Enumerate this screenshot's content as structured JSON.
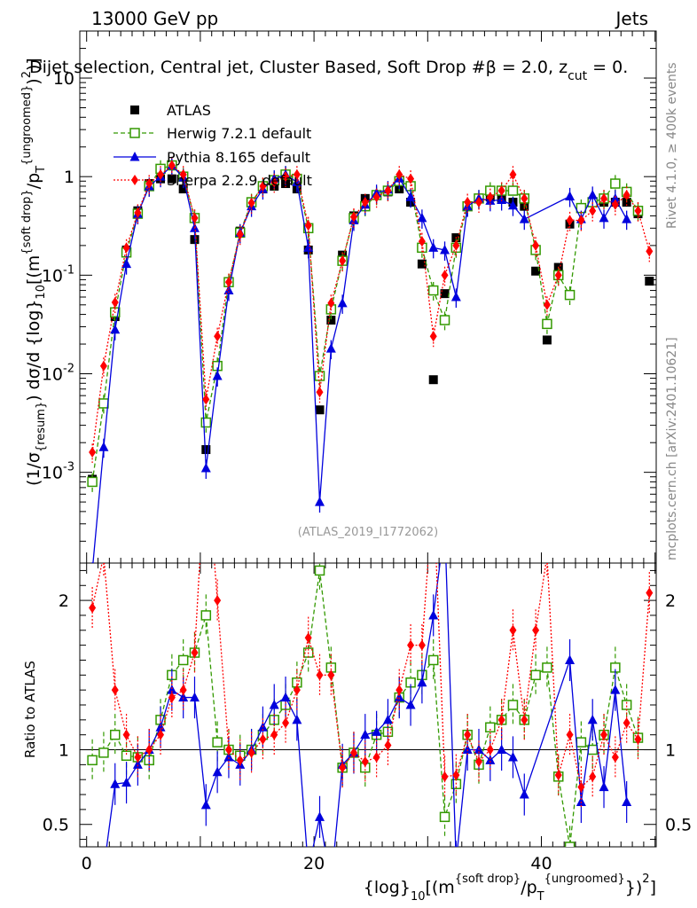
{
  "header": {
    "energy_label": "13000 GeV pp",
    "category": "Jets"
  },
  "chart_data": {
    "type": "scatter",
    "title": "Dijet selection, Central jet, Cluster Based, Soft Drop #beta = 2.0, z_cut = 0.",
    "title_parts": {
      "main": "Dijet selection, Central jet, Cluster Based, Soft Drop #",
      "beta": "β",
      "rest": " = 2.0, z",
      "cut": "cut",
      "tail": " = 0."
    },
    "xlabel": "{log}10[(m{soft drop}/pT{ungroomed})2]",
    "xlabel_parts": {
      "a": "{log}",
      "b": "10",
      "c": "[(m",
      "d": "{soft drop}",
      "e": "/p",
      "f": "T",
      "g": "{ungroomed}",
      "h": "})",
      "i": "2",
      "j": "]"
    },
    "ylabel": "(1/σ{resum}) dσ/d {log}10[(m{soft drop}/pT{ungroomed})2]",
    "ylabel_parts": {
      "a": "(1/σ",
      "b": "{resum}",
      "c": ") dσ/d {log}",
      "d": "10",
      "e": "[(m",
      "f": "{soft drop}",
      "g": "/p",
      "h": "T",
      "i": "{ungroomed}",
      "j": ")",
      "k": "2",
      "l": ")]"
    },
    "ratio_ylabel": "Ratio to ATLAS",
    "xlim": [
      -0.6,
      50.1
    ],
    "ylim_main": [
      0.00012,
      30
    ],
    "yscale_main": "log",
    "ylim_ratio": [
      0.35,
      2.25
    ],
    "xticks": [
      "0",
      "20",
      "40"
    ],
    "yticks_main": [
      {
        "base": "10",
        "exp": "-3"
      },
      {
        "base": "10",
        "exp": "-2"
      },
      {
        "base": "10",
        "exp": "-1"
      },
      {
        "base": "1",
        "exp": ""
      },
      {
        "base": "10",
        "exp": ""
      }
    ],
    "yticks_ratio": [
      "0.5",
      "1",
      "2"
    ],
    "legend_position": "top-left",
    "series": [
      {
        "name": "ATLAS",
        "color": "#000000",
        "style": "data",
        "x": [
          0.5,
          1.5,
          2.5,
          3.5,
          4.5,
          5.5,
          6.5,
          7.5,
          8.5,
          9.5,
          10.5,
          11.5,
          12.5,
          13.5,
          14.5,
          15.5,
          16.5,
          17.5,
          18.5,
          19.5,
          20.5,
          21.5,
          22.5,
          23.5,
          24.5,
          25.5,
          26.5,
          27.5,
          28.5,
          29.5,
          30.5,
          31.5,
          32.5,
          33.5,
          34.5,
          35.5,
          36.5,
          37.5,
          38.5,
          39.5,
          40.5,
          41.5,
          42.5,
          43.5,
          44.5,
          45.5,
          46.5,
          47.5,
          48.5,
          49.5
        ],
        "y": [
          0.00085,
          0.005,
          0.038,
          0.18,
          0.45,
          0.85,
          0.95,
          0.95,
          0.75,
          0.23,
          0.0017,
          0.012,
          0.085,
          0.28,
          0.55,
          0.75,
          0.8,
          0.85,
          0.75,
          0.18,
          0.0043,
          0.035,
          0.16,
          0.4,
          0.6,
          0.65,
          0.7,
          0.75,
          0.55,
          0.13,
          0.0087,
          0.065,
          0.24,
          0.5,
          0.6,
          0.62,
          0.6,
          0.55,
          0.5,
          0.11,
          0.022,
          0.12,
          0.33,
          0.48,
          0.55,
          0.55,
          0.55,
          0.55,
          0.42,
          0.087
        ]
      },
      {
        "name": "Herwig 7.2.1 default",
        "color": "#339900",
        "style": "dashed-open-square",
        "x": [
          0.5,
          1.5,
          2.5,
          3.5,
          4.5,
          5.5,
          6.5,
          7.5,
          8.5,
          9.5,
          10.5,
          11.5,
          12.5,
          13.5,
          14.5,
          15.5,
          16.5,
          17.5,
          18.5,
          19.5,
          20.5,
          21.5,
          22.5,
          23.5,
          24.5,
          25.5,
          26.5,
          27.5,
          28.5,
          29.5,
          30.5,
          31.5,
          32.5,
          33.5,
          34.5,
          35.5,
          36.5,
          37.5,
          38.5,
          39.5,
          40.5,
          41.5,
          42.5,
          43.5,
          44.5,
          45.5,
          46.5,
          47.5,
          48.5
        ],
        "y": [
          0.0008,
          0.005,
          0.042,
          0.17,
          0.42,
          0.8,
          1.2,
          1.3,
          1.0,
          0.38,
          0.0032,
          0.012,
          0.085,
          0.27,
          0.55,
          0.8,
          0.92,
          1.05,
          0.95,
          0.3,
          0.0095,
          0.045,
          0.14,
          0.38,
          0.5,
          0.65,
          0.72,
          0.9,
          0.8,
          0.19,
          0.07,
          0.035,
          0.19,
          0.5,
          0.6,
          0.72,
          0.72,
          0.72,
          0.6,
          0.18,
          0.032,
          0.1,
          0.063,
          0.48,
          0.55,
          0.6,
          0.85,
          0.7,
          0.45
        ]
      },
      {
        "name": "Pythia 8.165 default",
        "color": "#0000dd",
        "style": "solid-triangle",
        "x": [
          0.5,
          1.5,
          2.5,
          3.5,
          4.5,
          5.5,
          6.5,
          7.5,
          8.5,
          9.5,
          10.5,
          11.5,
          12.5,
          13.5,
          14.5,
          15.5,
          16.5,
          17.5,
          18.5,
          19.5,
          20.5,
          21.5,
          22.5,
          23.5,
          24.5,
          25.5,
          26.5,
          27.5,
          28.5,
          29.5,
          30.5,
          31.5,
          32.5,
          33.5,
          34.5,
          35.5,
          36.5,
          37.5,
          38.5,
          42.5,
          43.5,
          44.5,
          45.5,
          46.5,
          47.5
        ],
        "y": [
          0.0001,
          0.0018,
          0.028,
          0.13,
          0.42,
          0.8,
          1.0,
          1.3,
          0.98,
          0.3,
          0.0011,
          0.0095,
          0.07,
          0.27,
          0.5,
          0.75,
          0.95,
          1.05,
          0.88,
          0.19,
          0.0005,
          0.018,
          0.052,
          0.36,
          0.52,
          0.68,
          0.74,
          0.96,
          0.62,
          0.38,
          0.19,
          0.18,
          0.06,
          0.5,
          0.6,
          0.57,
          0.58,
          0.51,
          0.37,
          0.63,
          0.37,
          0.65,
          0.38,
          0.6,
          0.37
        ]
      },
      {
        "name": "Sherpa 2.2.9 default",
        "color": "#ff0000",
        "style": "dotted-diamond",
        "x": [
          0.5,
          1.5,
          2.5,
          3.5,
          4.5,
          5.5,
          6.5,
          7.5,
          8.5,
          9.5,
          10.5,
          11.5,
          12.5,
          13.5,
          14.5,
          15.5,
          16.5,
          17.5,
          18.5,
          19.5,
          20.5,
          21.5,
          22.5,
          23.5,
          24.5,
          25.5,
          26.5,
          27.5,
          28.5,
          29.5,
          30.5,
          31.5,
          32.5,
          33.5,
          34.5,
          35.5,
          36.5,
          37.5,
          38.5,
          39.5,
          40.5,
          41.5,
          42.5,
          43.5,
          44.5,
          45.5,
          46.5,
          47.5,
          48.5,
          49.5
        ],
        "y": [
          0.0016,
          0.012,
          0.053,
          0.19,
          0.43,
          0.85,
          1.05,
          1.3,
          1.05,
          0.38,
          0.0055,
          0.024,
          0.085,
          0.26,
          0.54,
          0.8,
          0.88,
          1.0,
          1.05,
          0.32,
          0.0065,
          0.052,
          0.14,
          0.39,
          0.55,
          0.62,
          0.72,
          1.05,
          0.95,
          0.22,
          0.024,
          0.1,
          0.2,
          0.55,
          0.55,
          0.62,
          0.72,
          1.05,
          0.6,
          0.2,
          0.05,
          0.1,
          0.36,
          0.36,
          0.45,
          0.6,
          0.52,
          0.65,
          0.45,
          0.175
        ]
      }
    ],
    "ratio_series": [
      {
        "name": "Herwig 7.2.1 default",
        "color": "#339900",
        "x": [
          0.5,
          1.5,
          2.5,
          3.5,
          4.5,
          5.5,
          6.5,
          7.5,
          8.5,
          9.5,
          10.5,
          11.5,
          12.5,
          13.5,
          14.5,
          15.5,
          16.5,
          17.5,
          18.5,
          19.5,
          20.5,
          21.5,
          22.5,
          23.5,
          24.5,
          25.5,
          26.5,
          27.5,
          28.5,
          29.5,
          30.5,
          31.5,
          32.5,
          33.5,
          34.5,
          35.5,
          36.5,
          37.5,
          38.5,
          39.5,
          40.5,
          41.5,
          42.5,
          43.5,
          44.5,
          45.5,
          46.5,
          47.5,
          48.5
        ],
        "y": [
          0.93,
          0.98,
          1.1,
          0.96,
          0.95,
          0.93,
          1.2,
          1.5,
          1.6,
          1.65,
          1.9,
          1.05,
          1.0,
          0.96,
          1.0,
          1.1,
          1.2,
          1.3,
          1.45,
          1.65,
          2.2,
          1.55,
          0.88,
          0.98,
          0.88,
          1.1,
          1.12,
          1.35,
          1.45,
          1.5,
          1.6,
          0.55,
          0.77,
          1.1,
          0.9,
          1.15,
          1.2,
          1.3,
          1.2,
          1.5,
          1.55,
          0.82,
          0.35,
          1.05,
          1.0,
          1.1,
          1.55,
          1.3,
          1.08
        ]
      },
      {
        "name": "Pythia 8.165 default",
        "color": "#0000dd",
        "x": [
          1.5,
          2.5,
          3.5,
          4.5,
          5.5,
          6.5,
          7.5,
          8.5,
          9.5,
          10.5,
          11.5,
          12.5,
          13.5,
          14.5,
          15.5,
          16.5,
          17.5,
          18.5,
          19.5,
          20.5,
          21.5,
          22.5,
          23.5,
          24.5,
          25.5,
          26.5,
          27.5,
          28.5,
          29.5,
          30.5,
          31.5,
          32.5,
          33.5,
          34.5,
          35.5,
          36.5,
          37.5,
          38.5,
          42.5,
          43.5,
          44.5,
          45.5,
          46.5,
          47.5
        ],
        "y": [
          0.2,
          0.77,
          0.78,
          0.9,
          1.0,
          1.15,
          1.4,
          1.35,
          1.35,
          0.63,
          0.85,
          0.95,
          0.9,
          1.0,
          1.15,
          1.3,
          1.35,
          1.2,
          0.2,
          0.55,
          0.1,
          0.9,
          0.98,
          1.1,
          1.12,
          1.2,
          1.35,
          1.3,
          1.45,
          1.9,
          2.5,
          0.25,
          1.0,
          1.0,
          0.93,
          1.0,
          0.95,
          0.7,
          1.6,
          0.65,
          1.2,
          0.75,
          1.4,
          0.65
        ]
      },
      {
        "name": "Sherpa 2.2.9 default",
        "color": "#ff0000",
        "x": [
          0.5,
          1.5,
          2.5,
          3.5,
          4.5,
          5.5,
          6.5,
          7.5,
          8.5,
          9.5,
          10.5,
          11.5,
          12.5,
          13.5,
          14.5,
          15.5,
          16.5,
          17.5,
          18.5,
          19.5,
          20.5,
          21.5,
          22.5,
          23.5,
          24.5,
          25.5,
          26.5,
          27.5,
          28.5,
          29.5,
          30.5,
          31.5,
          32.5,
          33.5,
          34.5,
          35.5,
          36.5,
          37.5,
          38.5,
          39.5,
          40.5,
          41.5,
          42.5,
          43.5,
          44.5,
          45.5,
          46.5,
          47.5,
          48.5,
          49.5
        ],
        "y": [
          1.95,
          2.3,
          1.4,
          1.1,
          0.95,
          1.0,
          1.1,
          1.35,
          1.4,
          1.65,
          3.0,
          2.0,
          1.0,
          0.93,
          0.98,
          1.07,
          1.1,
          1.18,
          1.4,
          1.75,
          1.5,
          1.5,
          0.88,
          0.98,
          0.92,
          0.95,
          1.03,
          1.4,
          1.7,
          1.7,
          2.75,
          0.82,
          0.83,
          1.1,
          0.92,
          1.0,
          1.2,
          1.8,
          1.2,
          1.8,
          2.3,
          0.83,
          1.1,
          0.75,
          0.82,
          1.1,
          0.95,
          1.18,
          1.07,
          2.05
        ]
      }
    ],
    "annotations": {
      "analysis_id": "(ATLAS_2019_I1772062)"
    },
    "side_labels": {
      "rivet": "Rivet 4.1.0, ≥ 400k events",
      "mcplots": "mcplots.cern.ch [arXiv:2401.10621]"
    }
  }
}
